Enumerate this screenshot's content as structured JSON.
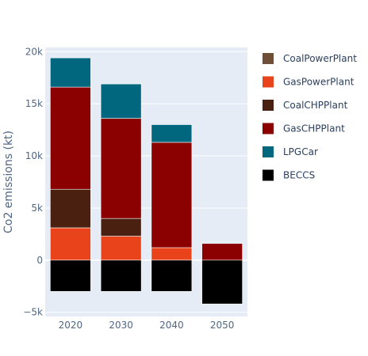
{
  "chart_data": {
    "type": "bar",
    "barmode": "relative",
    "categories": [
      "2020",
      "2030",
      "2040",
      "2050"
    ],
    "ylabel": "Co2 emissions (kt)",
    "ylim": [
      -5400,
      20400
    ],
    "yticks": [
      -5000,
      0,
      5000,
      10000,
      15000,
      20000
    ],
    "ytick_labels": [
      "−5k",
      "0",
      "5k",
      "10k",
      "15k",
      "20k"
    ],
    "grid": true,
    "legend_position": "right",
    "series": [
      {
        "name": "CoalPowerPlant",
        "color": "#6f4e37",
        "values": [
          0,
          0,
          0,
          0
        ]
      },
      {
        "name": "GasPowerPlant",
        "color": "#e8431a",
        "values": [
          3100,
          2300,
          1200,
          0
        ]
      },
      {
        "name": "CoalCHPPlant",
        "color": "#4a2010",
        "values": [
          3700,
          1700,
          0,
          0
        ]
      },
      {
        "name": "GasCHPPlant",
        "color": "#8b0000",
        "values": [
          9800,
          9600,
          10100,
          1600
        ]
      },
      {
        "name": "LPGCar",
        "color": "#00677e",
        "values": [
          2800,
          3300,
          1700,
          0
        ]
      },
      {
        "name": "BECCS",
        "color": "#000000",
        "values": [
          -3000,
          -3000,
          -3000,
          -4200
        ]
      }
    ]
  }
}
